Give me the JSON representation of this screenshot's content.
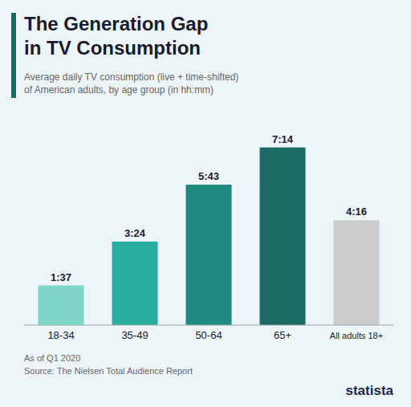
{
  "chart_data": {
    "type": "bar",
    "title": [
      "The Generation Gap",
      "in TV Consumption"
    ],
    "subtitle": [
      "Average daily TV consumption (live + time-shifted)",
      "of American adults, by age group (in hh:mm)"
    ],
    "categories": [
      "18-34",
      "35-49",
      "50-64",
      "65+",
      "All adults 18+"
    ],
    "values": [
      97,
      204,
      343,
      434,
      256
    ],
    "value_labels": [
      "1:37",
      "3:24",
      "5:43",
      "7:14",
      "4:16"
    ],
    "colors": [
      "#7dd6c8",
      "#2aada0",
      "#1e8a80",
      "#1a6b65",
      "#cccccc"
    ],
    "ylim": [
      0,
      500
    ],
    "grid": false,
    "data_labels": true,
    "tick_labels": "x",
    "annotations": [
      "As of Q1 2020",
      "Source: The Nielsen Total Audience Report",
      "statista"
    ]
  }
}
